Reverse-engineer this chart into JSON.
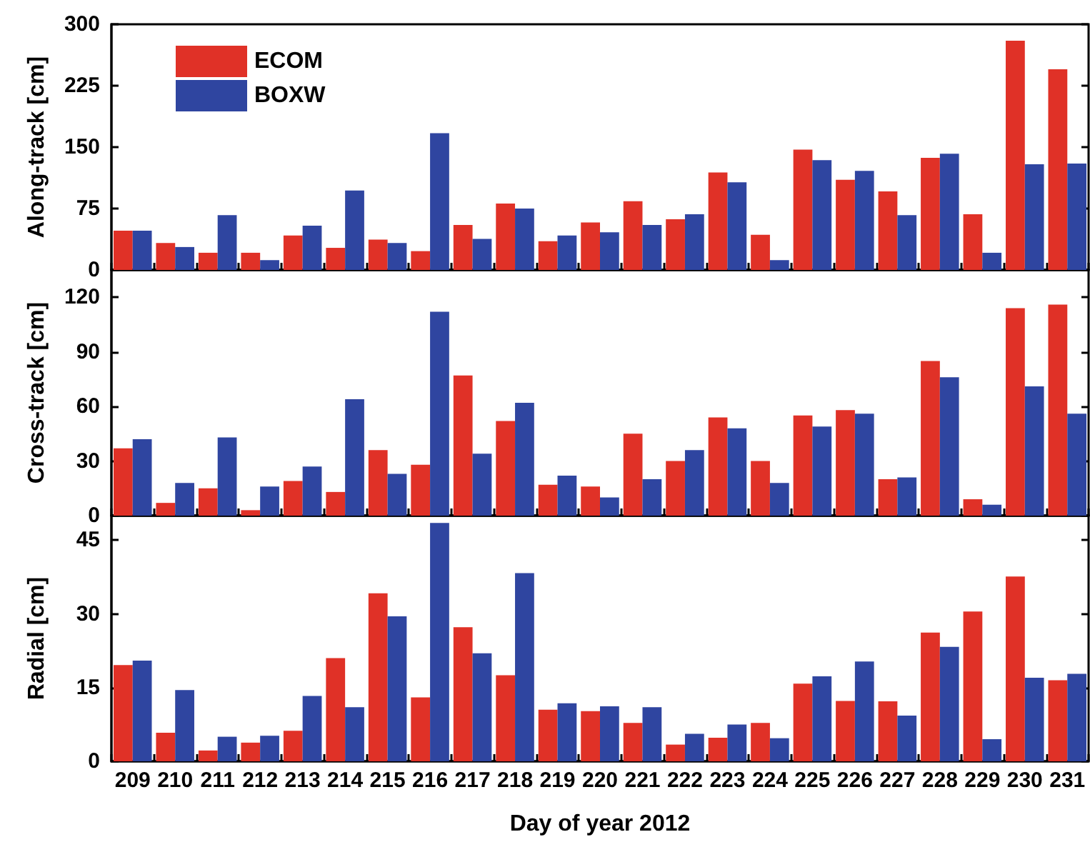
{
  "chart_data": [
    {
      "type": "bar",
      "ylabel": "Along-track [cm]",
      "categories": [
        "209",
        "210",
        "211",
        "212",
        "213",
        "214",
        "215",
        "216",
        "217",
        "218",
        "219",
        "220",
        "221",
        "222",
        "223",
        "224",
        "225",
        "226",
        "227",
        "228",
        "229",
        "230",
        "231"
      ],
      "series": [
        {
          "name": "ECOM",
          "color": "#e03127",
          "values": [
            48,
            33,
            21,
            21,
            42,
            27,
            37,
            23,
            55,
            81,
            35,
            58,
            84,
            62,
            119,
            43,
            147,
            110,
            96,
            137,
            68,
            280,
            245
          ]
        },
        {
          "name": "BOXW",
          "color": "#2f45a0",
          "values": [
            48,
            28,
            67,
            12,
            54,
            97,
            33,
            167,
            38,
            75,
            42,
            46,
            55,
            68,
            107,
            12,
            134,
            121,
            67,
            142,
            21,
            129,
            130
          ]
        }
      ],
      "ylim": [
        0,
        300
      ],
      "yticks": [
        0,
        75,
        150,
        225,
        300
      ],
      "legend": "top left",
      "grid": false,
      "tick_labels": "y"
    },
    {
      "type": "bar",
      "ylabel": "Cross-track [cm]",
      "categories": [
        "209",
        "210",
        "211",
        "212",
        "213",
        "214",
        "215",
        "216",
        "217",
        "218",
        "219",
        "220",
        "221",
        "222",
        "223",
        "224",
        "225",
        "226",
        "227",
        "228",
        "229",
        "230",
        "231"
      ],
      "series": [
        {
          "name": "ECOM",
          "color": "#e03127",
          "values": [
            37,
            7,
            15,
            3,
            19,
            13,
            36,
            28,
            77,
            52,
            17,
            16,
            45,
            30,
            54,
            30,
            55,
            58,
            20,
            85,
            9,
            114,
            116
          ]
        },
        {
          "name": "BOXW",
          "color": "#2f45a0",
          "values": [
            42,
            18,
            43,
            16,
            27,
            64,
            23,
            112,
            34,
            62,
            22,
            10,
            20,
            36,
            48,
            18,
            49,
            56,
            21,
            76,
            6,
            71,
            56
          ]
        }
      ],
      "ylim": [
        0,
        135
      ],
      "yticks": [
        0,
        30,
        60,
        90,
        120
      ],
      "grid": false,
      "tick_labels": "y"
    },
    {
      "type": "bar",
      "ylabel": "Radial [cm]",
      "xlabel": "Day of year 2012",
      "categories": [
        "209",
        "210",
        "211",
        "212",
        "213",
        "214",
        "215",
        "216",
        "217",
        "218",
        "219",
        "220",
        "221",
        "222",
        "223",
        "224",
        "225",
        "226",
        "227",
        "228",
        "229",
        "230",
        "231"
      ],
      "series": [
        {
          "name": "ECOM",
          "color": "#e03127",
          "values": [
            19.6,
            5.8,
            2.2,
            3.8,
            6.2,
            21,
            34.2,
            13,
            27.3,
            17.5,
            10.5,
            10.2,
            7.8,
            3.4,
            4.8,
            7.8,
            15.8,
            12.3,
            12.2,
            26.2,
            30.5,
            37.6,
            16.5
          ]
        },
        {
          "name": "BOXW",
          "color": "#2f45a0",
          "values": [
            20.5,
            14.5,
            5,
            5.2,
            13.3,
            11,
            29.5,
            48.5,
            22,
            38.3,
            11.8,
            11.2,
            11,
            5.6,
            7.5,
            4.7,
            17.3,
            20.3,
            9.3,
            23.3,
            4.5,
            17,
            17.8
          ]
        }
      ],
      "ylim": [
        0,
        50
      ],
      "yticks": [
        0,
        15,
        30,
        45
      ],
      "grid": false
    }
  ]
}
